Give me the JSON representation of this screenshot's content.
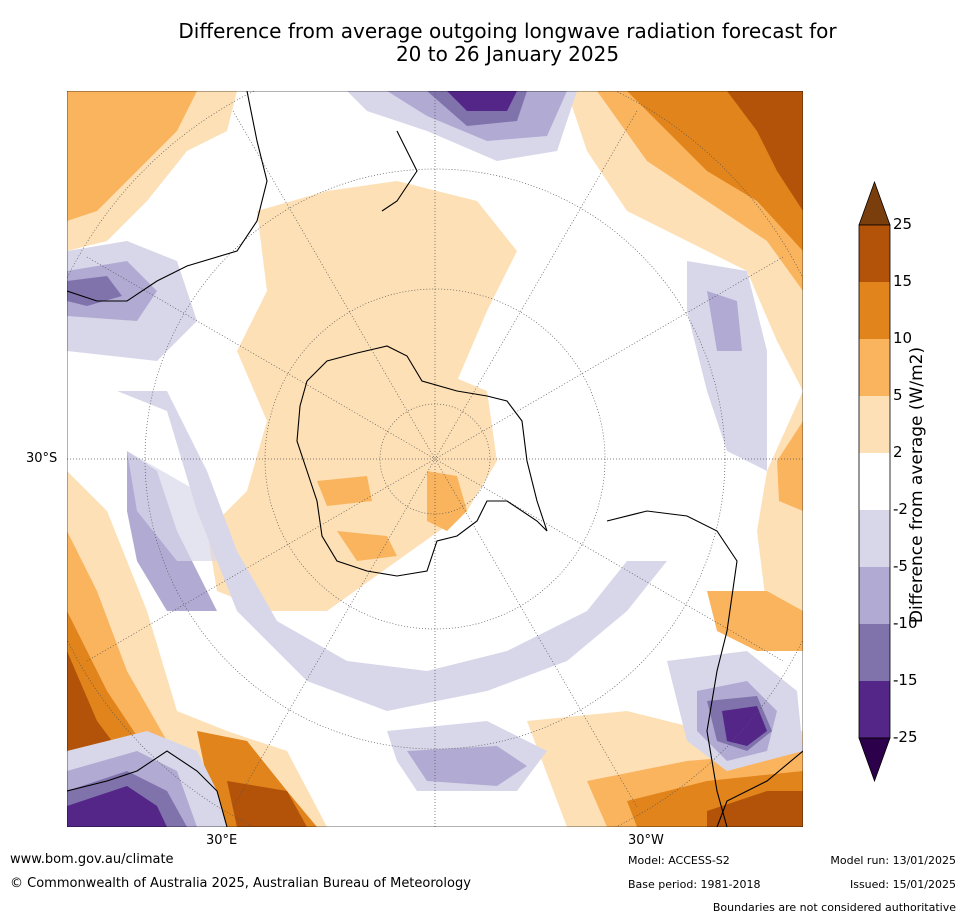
{
  "title_line1": "Difference from average outgoing longwave radiation forecast for",
  "title_line2": "20 to 26 January 2025",
  "map": {
    "projection": "south-polar-stereographic",
    "latitude_label": "30°S",
    "longitude_labels": [
      "30°E",
      "30°W"
    ],
    "graticule": "dotted"
  },
  "colorbar": {
    "title": "Difference from average (W/m2)",
    "tick_labels": [
      "25",
      "15",
      "10",
      "5",
      "2",
      "-2",
      "-5",
      "-10",
      "-15",
      "-25"
    ],
    "colors": [
      "#7a3d0c",
      "#b25309",
      "#e0841b",
      "#fbb45e",
      "#fde0b5",
      "#ffffff",
      "#d8d7ea",
      "#b1aad2",
      "#8073ac",
      "#542688",
      "#2d004b"
    ]
  },
  "footer": {
    "url": "www.bom.gov.au/climate",
    "copyright": "© Commonwealth of Australia 2025, Australian Bureau of Meteorology",
    "model": "Model: ACCESS-S2",
    "base_period": "Base period: 1981-2018",
    "model_run": "Model run: 13/01/2025",
    "issued": "Issued: 15/01/2025",
    "boundaries_note": "Boundaries are not considered authoritative"
  }
}
